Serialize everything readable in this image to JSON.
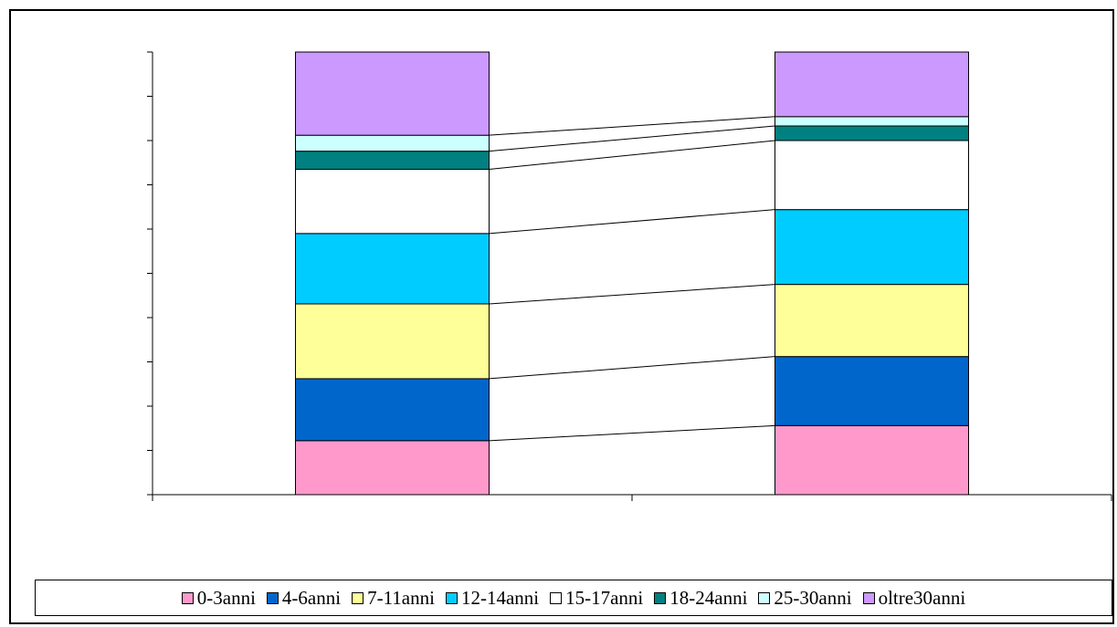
{
  "chart_data": {
    "type": "bar",
    "stacked": true,
    "percent_stacked": true,
    "connector_lines": true,
    "categories": [
      "",
      ""
    ],
    "series": [
      {
        "name": "0-3anni",
        "color": "#FF99CC",
        "values": [
          12.2,
          15.6
        ]
      },
      {
        "name": "4-6anni",
        "color": "#0066CC",
        "values": [
          14.0,
          15.6
        ]
      },
      {
        "name": "7-11anni",
        "color": "#FFFF99",
        "values": [
          16.9,
          16.3
        ]
      },
      {
        "name": "12-14anni",
        "color": "#00CCFF",
        "values": [
          15.9,
          16.9
        ]
      },
      {
        "name": "15-17anni",
        "color": "#FFFFFF",
        "values": [
          14.5,
          15.6
        ]
      },
      {
        "name": "18-24anni",
        "color": "#008080",
        "values": [
          4.1,
          3.3
        ]
      },
      {
        "name": "25-30anni",
        "color": "#CCFFFF",
        "values": [
          3.6,
          2.1
        ]
      },
      {
        "name": "oltre30anni",
        "color": "#CC99FF",
        "values": [
          18.8,
          14.6
        ]
      }
    ],
    "ylim": [
      0,
      100
    ],
    "y_ticks": 10,
    "grid": false,
    "legend_position": "bottom"
  }
}
